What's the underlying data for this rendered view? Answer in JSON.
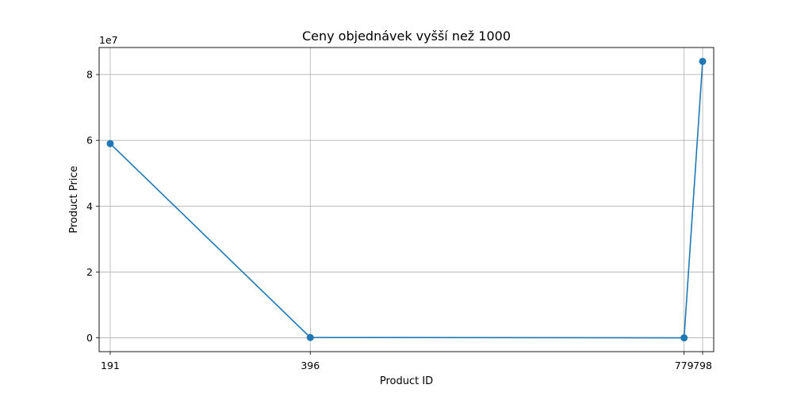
{
  "chart_data": {
    "type": "line",
    "title": "Ceny objednávek vyšší než 1000",
    "xlabel": "Product ID",
    "ylabel": "Product Price",
    "y_offset_text": "1e7",
    "x": [
      191,
      396,
      779,
      798
    ],
    "x_tick_labels": [
      "191",
      "396",
      "779",
      "798"
    ],
    "xlim": [
      179.65,
      809.35
    ],
    "y_ticks": [
      0,
      20000000,
      40000000,
      60000000,
      80000000
    ],
    "y_tick_labels": [
      "0",
      "2",
      "4",
      "6",
      "8"
    ],
    "ylim": [
      -4200000,
      88200000
    ],
    "grid": true,
    "color": "#1f77b4",
    "series": [
      {
        "values": [
          59000000,
          100000,
          5000,
          84000000
        ]
      }
    ]
  }
}
